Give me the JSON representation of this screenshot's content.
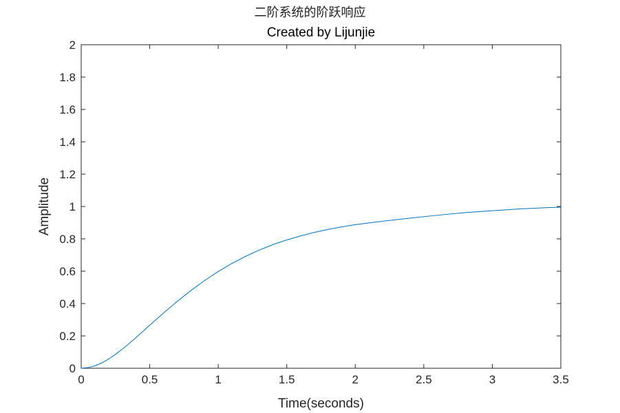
{
  "figure": {
    "suptitle": "二阶系统的阶跃响应",
    "title": "Created by Lijunjie"
  },
  "chart_data": {
    "type": "line",
    "title": "Created by Lijunjie",
    "xlabel": "Time(seconds)",
    "ylabel": "Amplitude",
    "xlim": [
      0,
      3.5
    ],
    "ylim": [
      0,
      2
    ],
    "xticks": [
      0,
      0.5,
      1,
      1.5,
      2,
      2.5,
      3,
      3.5
    ],
    "xtick_labels": [
      "0",
      "0.5",
      "1",
      "1.5",
      "2",
      "2.5",
      "3",
      "3.5"
    ],
    "yticks": [
      0,
      0.2,
      0.4,
      0.6,
      0.8,
      1,
      1.2,
      1.4,
      1.6,
      1.8,
      2
    ],
    "ytick_labels": [
      "0",
      "0.2",
      "0.4",
      "0.6",
      "0.8",
      "1",
      "1.2",
      "1.4",
      "1.6",
      "1.8",
      "2"
    ],
    "grid": false,
    "series": [
      {
        "color": "#0072bd",
        "x": [
          0,
          0.05,
          0.1,
          0.15,
          0.2,
          0.25,
          0.3,
          0.35,
          0.4,
          0.45,
          0.5,
          0.6,
          0.7,
          0.8,
          0.9,
          1.0,
          1.1,
          1.2,
          1.3,
          1.4,
          1.5,
          1.6,
          1.7,
          1.8,
          1.9,
          2.0,
          2.2,
          2.4,
          2.6,
          2.8,
          3.0,
          3.2,
          3.4,
          3.5
        ],
        "y": [
          0,
          0.004,
          0.015,
          0.033,
          0.057,
          0.086,
          0.118,
          0.153,
          0.19,
          0.228,
          0.266,
          0.341,
          0.413,
          0.48,
          0.542,
          0.598,
          0.648,
          0.692,
          0.731,
          0.765,
          0.793,
          0.818,
          0.84,
          0.858,
          0.874,
          0.888,
          0.909,
          0.928,
          0.946,
          0.962,
          0.974,
          0.985,
          0.993,
          0.996
        ]
      }
    ]
  }
}
